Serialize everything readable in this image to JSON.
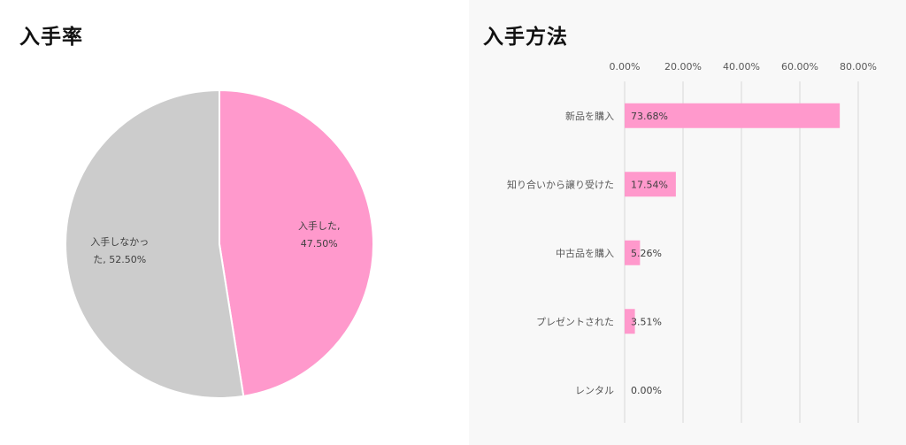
{
  "chart_data": [
    {
      "type": "pie",
      "title": "入手率",
      "slices": [
        {
          "label_line1": "入手した,",
          "label_line2": "47.50%",
          "value": 47.5,
          "color": "#ff99cc"
        },
        {
          "label_line1": "入手しなかっ",
          "label_line2": "た, 52.50%",
          "value": 52.5,
          "color": "#cccccc"
        }
      ]
    },
    {
      "type": "bar",
      "orientation": "horizontal",
      "title": "入手方法",
      "categories": [
        "新品を購入",
        "知り合いから譲り受けた",
        "中古品を購入",
        "プレゼントされた",
        "レンタル"
      ],
      "values": [
        73.68,
        17.54,
        5.26,
        3.51,
        0.0
      ],
      "data_labels": [
        "73.68%",
        "17.54%",
        "5.26%",
        "3.51%",
        "0.00%"
      ],
      "xlim": [
        0,
        0.8
      ],
      "ticks": [
        "0.00%",
        "20.00%",
        "40.00%",
        "60.00%",
        "80.00%"
      ],
      "grid": true,
      "bar_color": "#ff99cc"
    }
  ]
}
